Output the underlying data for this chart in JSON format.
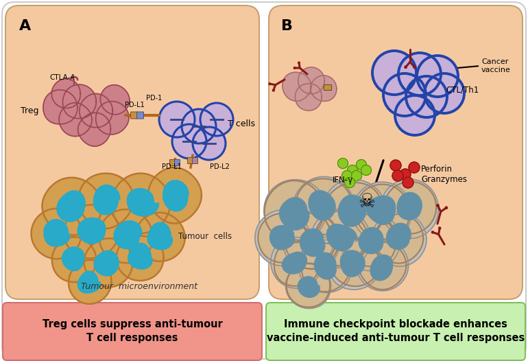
{
  "panel_bg": "#f5c9a0",
  "outer_bg": "#ffffff",
  "panel_A_label": "A",
  "panel_B_label": "B",
  "treg_label": "Treg",
  "ctla4_label": "CTLA-4",
  "pd1_label": "PD-1",
  "pdl1_label_top": "PD-L1",
  "pdl1_label_bot": "PD-L1",
  "pdl2_label": "PD-L2",
  "tcells_label": "T cells",
  "tumour_label": "Tumour  cells",
  "tumour_env_label": "Tumour  microenvironment",
  "cancer_vaccine_label": "Cancer\nvaccine",
  "ctl_label": "CTL/Th1",
  "ifng_label": "IFN-γ",
  "perforin_label": "Perforin\nGranzymes",
  "box_A_text1": "Treg cells suppress anti-tumour",
  "box_A_text2": "T cell responses",
  "box_B_text1": "Immune checkpoint blockade enhances",
  "box_B_text2": "vaccine-induced anti-tumour T cell responses",
  "box_A_fill": "#f1948a",
  "box_B_fill": "#c8f0b0",
  "treg_cell_color": "#cc8088",
  "treg_cell_edge": "#994455",
  "t_cell_fill": "#c8b0d8",
  "t_cell_edge": "#2244aa",
  "tumour_outer": "#d4a050",
  "tumour_inner": "#28aac8",
  "killed_outer_fill": "#d4b890",
  "killed_outer_edge": "#a08060",
  "killed_inner": "#6090a8",
  "killed_ring": "#c0c0c0",
  "antibody_color": "#881818",
  "green_cytokine": "#88cc22",
  "red_perforin": "#cc2222",
  "connector_color": "#b06820",
  "receptor_brown": "#c8903c",
  "receptor_blue": "#8088c0",
  "receptor_pink": "#c08080"
}
